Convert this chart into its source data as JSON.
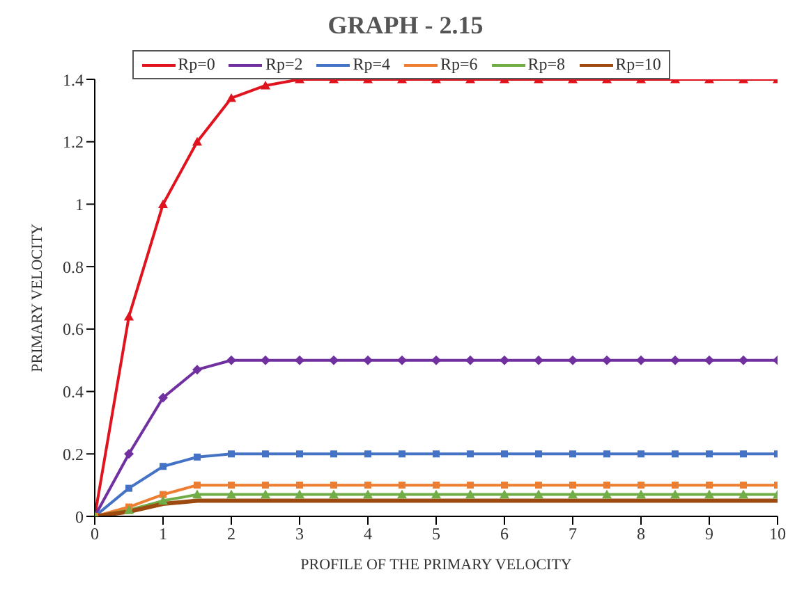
{
  "chart_data": {
    "type": "line",
    "title": "GRAPH - 2.15",
    "xlabel": "PROFILE OF THE PRIMARY VELOCITY",
    "ylabel": "PRIMARY VELOCITY",
    "x": [
      0,
      0.5,
      1,
      1.5,
      2,
      2.5,
      3,
      3.5,
      4,
      4.5,
      5,
      5.5,
      6,
      6.5,
      7,
      7.5,
      8,
      8.5,
      9,
      9.5,
      10
    ],
    "xlim": [
      0,
      10
    ],
    "xticks": [
      0,
      1,
      2,
      3,
      4,
      5,
      6,
      7,
      8,
      9,
      10
    ],
    "ylim": [
      0,
      1.4
    ],
    "yticks": [
      0,
      0.2,
      0.4,
      0.6,
      0.8,
      1,
      1.2,
      1.4
    ],
    "grid": false,
    "legend": "top",
    "line_style": "solid",
    "series": [
      {
        "name": "Rp=0",
        "color": "#e0141e",
        "marker": "triangle",
        "values": [
          0,
          0.64,
          1.0,
          1.2,
          1.34,
          1.38,
          1.4,
          1.4,
          1.4,
          1.4,
          1.4,
          1.4,
          1.4,
          1.4,
          1.4,
          1.4,
          1.4,
          1.4,
          1.4,
          1.4,
          1.4
        ]
      },
      {
        "name": "Rp=2",
        "color": "#7030a0",
        "marker": "diamond",
        "values": [
          0,
          0.2,
          0.38,
          0.47,
          0.5,
          0.5,
          0.5,
          0.5,
          0.5,
          0.5,
          0.5,
          0.5,
          0.5,
          0.5,
          0.5,
          0.5,
          0.5,
          0.5,
          0.5,
          0.5,
          0.5
        ]
      },
      {
        "name": "Rp=4",
        "color": "#4472c4",
        "marker": "square",
        "values": [
          0,
          0.09,
          0.16,
          0.19,
          0.2,
          0.2,
          0.2,
          0.2,
          0.2,
          0.2,
          0.2,
          0.2,
          0.2,
          0.2,
          0.2,
          0.2,
          0.2,
          0.2,
          0.2,
          0.2,
          0.2
        ]
      },
      {
        "name": "Rp=6",
        "color": "#ed7d31",
        "marker": "square",
        "values": [
          0,
          0.03,
          0.07,
          0.1,
          0.1,
          0.1,
          0.1,
          0.1,
          0.1,
          0.1,
          0.1,
          0.1,
          0.1,
          0.1,
          0.1,
          0.1,
          0.1,
          0.1,
          0.1,
          0.1,
          0.1
        ]
      },
      {
        "name": "Rp=8",
        "color": "#70ad47",
        "marker": "triangle",
        "values": [
          0,
          0.02,
          0.05,
          0.07,
          0.07,
          0.07,
          0.07,
          0.07,
          0.07,
          0.07,
          0.07,
          0.07,
          0.07,
          0.07,
          0.07,
          0.07,
          0.07,
          0.07,
          0.07,
          0.07,
          0.07
        ]
      },
      {
        "name": "Rp=10",
        "color": "#9c4a10",
        "marker": "none",
        "values": [
          0,
          0.015,
          0.04,
          0.05,
          0.05,
          0.05,
          0.05,
          0.05,
          0.05,
          0.05,
          0.05,
          0.05,
          0.05,
          0.05,
          0.05,
          0.05,
          0.05,
          0.05,
          0.05,
          0.05,
          0.05
        ]
      }
    ]
  }
}
